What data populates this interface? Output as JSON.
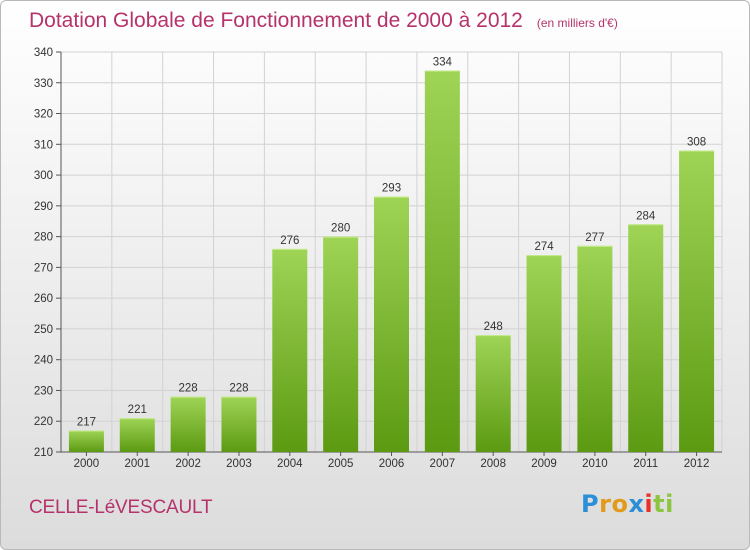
{
  "title": "Dotation Globale de Fonctionnement de 2000 à 2012",
  "unit_note": "(en milliers d'€)",
  "place": "CELLE-LéVESCAULT",
  "logo": {
    "letters": [
      "P",
      "r",
      "o",
      "x",
      "i",
      "t",
      "i"
    ],
    "colors": [
      "#2a8fd6",
      "#e39a1b",
      "#e39a1b",
      "#2a8fd6",
      "#e7322b",
      "#8cc640",
      "#8cc640"
    ]
  },
  "colors": {
    "bar_top": "#9fd456",
    "bar_bottom": "#5c9a12",
    "title": "#b5336a"
  },
  "chart_data": {
    "type": "bar",
    "title": "Dotation Globale de Fonctionnement de 2000 à 2012",
    "categories": [
      "2000",
      "2001",
      "2002",
      "2003",
      "2004",
      "2005",
      "2006",
      "2007",
      "2008",
      "2009",
      "2010",
      "2011",
      "2012"
    ],
    "values": [
      217,
      221,
      228,
      228,
      276,
      280,
      293,
      334,
      248,
      274,
      277,
      284,
      308
    ],
    "ylim": [
      210,
      340
    ],
    "yticks": [
      210,
      220,
      230,
      240,
      250,
      260,
      270,
      280,
      290,
      300,
      310,
      320,
      330,
      340
    ],
    "grid": true
  }
}
